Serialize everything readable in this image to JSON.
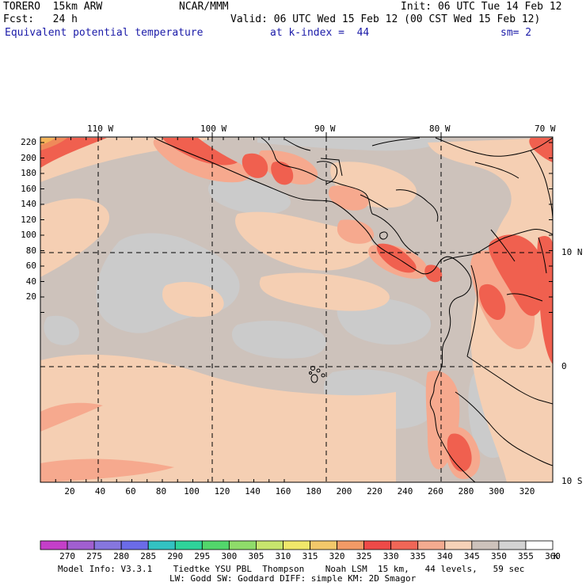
{
  "header": {
    "model": "TORERO  15km ARW",
    "center": "NCAR/MMM",
    "init": "Init: 06 UTC Tue 14 Feb 12",
    "fcst": "Fcst:   24 h",
    "valid": "Valid: 06 UTC Wed 15 Feb 12 (00 CST Wed 15 Feb 12)",
    "field": "Equivalent potential temperature",
    "level": "at k-index =  44",
    "smooth": "sm= 2"
  },
  "map": {
    "top_lon_labels": [
      "110 W",
      "100 W",
      "90 W",
      "80 W",
      "70 W"
    ],
    "right_lat_labels": [
      "10 N",
      "0",
      "10 S"
    ],
    "y_ticks": [
      "220",
      "200",
      "180",
      "160",
      "140",
      "120",
      "100",
      "80",
      "60",
      "40",
      "20"
    ],
    "x_ticks": [
      "20",
      "40",
      "60",
      "80",
      "100",
      "120",
      "140",
      "160",
      "180",
      "200",
      "220",
      "240",
      "260",
      "280",
      "300",
      "320"
    ],
    "colors": {
      "theta_345_350": "#cdc2bb",
      "theta_350_355": "#cbcbcb",
      "theta_340_345": "#f5cfb3",
      "theta_335_340": "#f6a98e",
      "theta_330_335": "#f0604f",
      "theta_325_330": "#ef8a5a",
      "theta_320_325": "#f4b45a",
      "coast": "#000000"
    }
  },
  "colorbar": {
    "labels": [
      "270",
      "275",
      "280",
      "285",
      "290",
      "295",
      "300",
      "305",
      "310",
      "315",
      "320",
      "325",
      "330",
      "335",
      "340",
      "345",
      "350",
      "355",
      "360"
    ],
    "unit": "K",
    "colors": [
      "#c43fc9",
      "#a15fd0",
      "#8676de",
      "#6b6be8",
      "#33c2c2",
      "#2ed39a",
      "#52d66b",
      "#8fdc6a",
      "#c7e56d",
      "#f0e86a",
      "#f3c86a",
      "#f29a66",
      "#ee4a48",
      "#f06657",
      "#f4ab90",
      "#f6d2b8",
      "#cdc2bb",
      "#d3d3d3",
      "#ffffff"
    ]
  },
  "footer": {
    "line1": "Model Info: V3.3.1    Tiedtke YSU PBL  Thompson    Noah LSM  15 km,   44 levels,   59 sec",
    "line2": "LW: Godd SW: Goddard DIFF: simple KM: 2D Smagor"
  }
}
